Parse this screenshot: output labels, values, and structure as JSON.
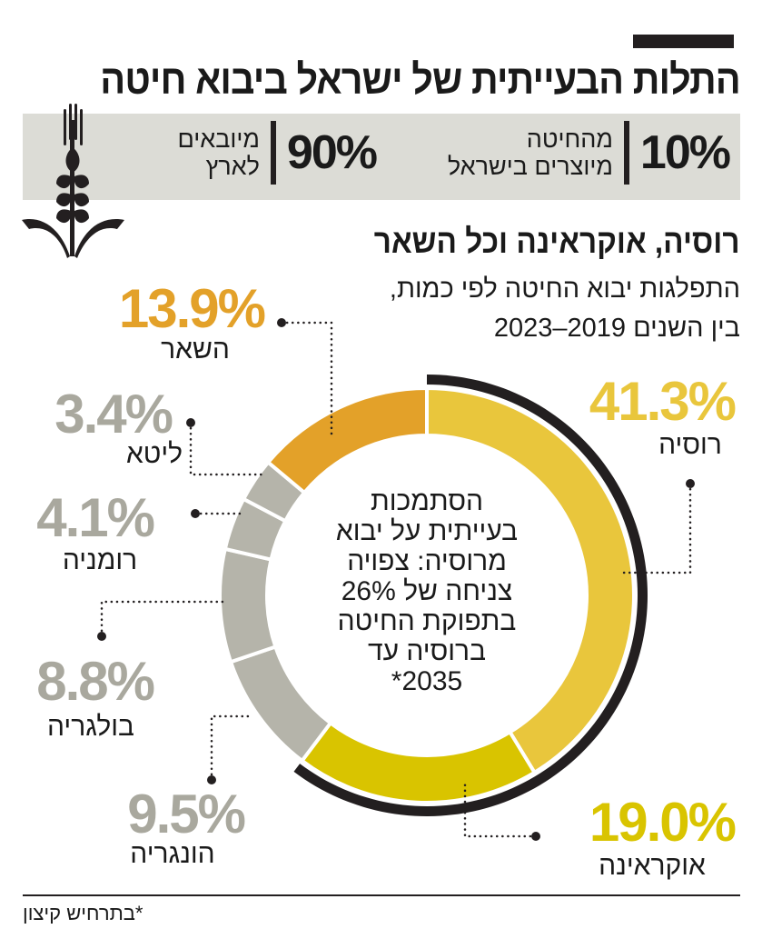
{
  "header": {
    "title": "התלות הבעייתית של ישראל ביבוא חיטה"
  },
  "stats": [
    {
      "value": "10%",
      "text_line1": "מהחיטה",
      "text_line2": "מיוצרים בישראל"
    },
    {
      "value": "90%",
      "text_line1": "מיובאים",
      "text_line2": "לארץ"
    }
  ],
  "icon": "wheat-icon",
  "subheader": {
    "title": "רוסיה, אוקראינה וכל השאר",
    "line1": "התפלגות יבוא החיטה לפי כמות,",
    "line2": "בין השנים 2019–2023"
  },
  "chart_data": {
    "type": "pie",
    "style": "donut",
    "unit": "%",
    "direction": "clockwise from top",
    "slices": [
      {
        "name": "רוסיה",
        "value": 41.3,
        "label": "41.3%",
        "color": "#e9c63c",
        "label_color": "#e9c63c",
        "highlighted": true
      },
      {
        "name": "אוקראינה",
        "value": 19.0,
        "label": "19.0%",
        "color": "#d9c400",
        "label_color": "#d9c400",
        "highlighted": true
      },
      {
        "name": "הונגריה",
        "value": 9.5,
        "label": "9.5%",
        "color": "#b5b4aa",
        "label_color": "#a9a89e"
      },
      {
        "name": "בולגריה",
        "value": 8.8,
        "label": "8.8%",
        "color": "#b5b4aa",
        "label_color": "#a9a89e"
      },
      {
        "name": "רומניה",
        "value": 4.1,
        "label": "4.1%",
        "color": "#b5b4aa",
        "label_color": "#a9a89e"
      },
      {
        "name": "ליטא",
        "value": 3.4,
        "label": "3.4%",
        "color": "#b5b4aa",
        "label_color": "#a9a89e"
      },
      {
        "name": "השאר",
        "value": 13.9,
        "label": "13.9%",
        "color": "#e3a129",
        "label_color": "#e3a129"
      }
    ],
    "center_text": [
      "הסתמכות",
      "בעייתית על יבוא",
      "מרוסיה: צפויה",
      "צניחה של 26%",
      "בתפוקת החיטה",
      "ברוסיה עד",
      "2035*"
    ],
    "highlight_arc_color": "#231f20"
  },
  "footnote": "*בתרחיש קיצון"
}
